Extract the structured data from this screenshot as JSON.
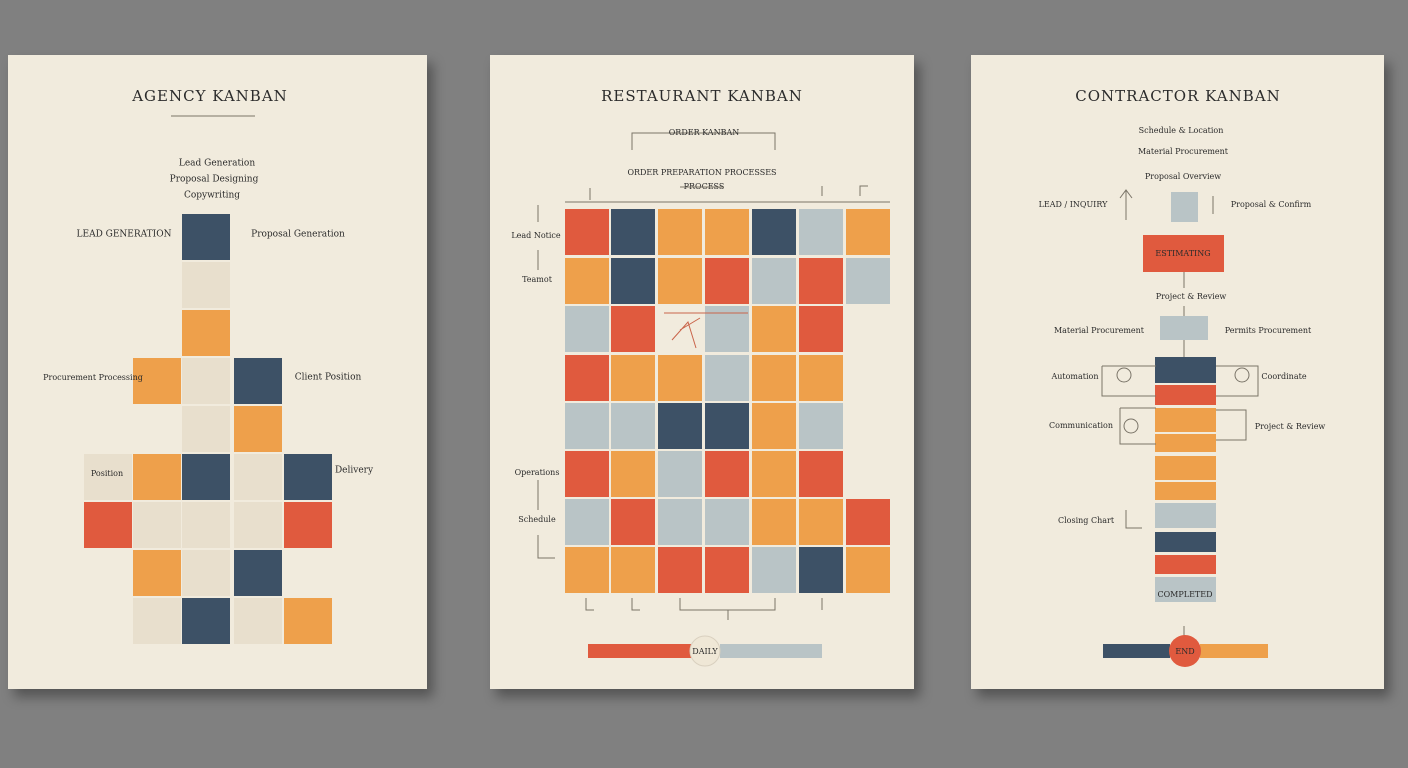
{
  "agency": {
    "title": "AGENCY KANBAN",
    "intro": [
      "Lead Generation",
      "Proposal Designing",
      "Copywriting"
    ],
    "labels": [
      "LEAD GENERATION",
      "Proposal Generation",
      "Procurement Processing",
      "Client Position",
      "Position",
      "Delivery"
    ]
  },
  "restaurant": {
    "title": "RESTAURANT KANBAN",
    "header": "ORDER KANBAN",
    "subheader": "ORDER PREPARATION PROCESSES",
    "process": "PROCESS",
    "labels": [
      "Lead Notice",
      "Teamot",
      "Operations",
      "Schedule"
    ],
    "footer": "DAILY"
  },
  "contractor": {
    "title": "CONTRACTOR KANBAN",
    "intro": [
      "Schedule & Location",
      "Material Procurement",
      "Proposal Overview"
    ],
    "labels": [
      "LEAD / INQUIRY",
      "Proposal & Confirm",
      "ESTIMATING",
      "Project & Review",
      "Material Procurement",
      "Permits Procurement",
      "Automation",
      "Coordinate",
      "Communication",
      "Project & Review",
      "Closing Chart",
      "COMPLETED"
    ],
    "footer": "END"
  }
}
